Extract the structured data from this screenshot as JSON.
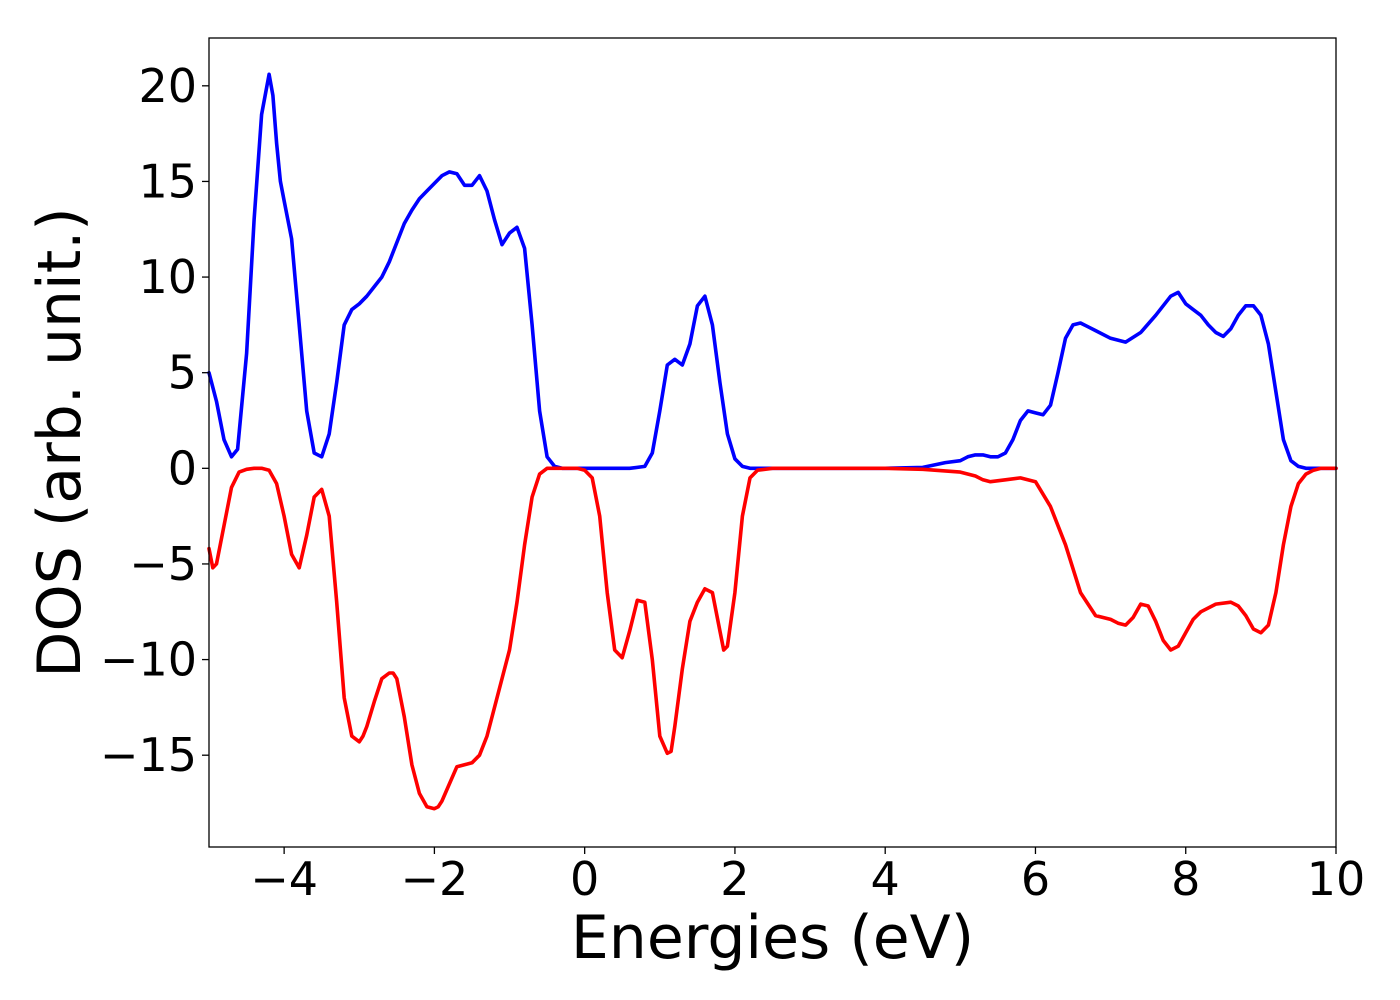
{
  "chart_data": {
    "type": "line",
    "xlabel": "Energies (eV)",
    "ylabel": "DOS (arb. unit.)",
    "xlim": [
      -5,
      10
    ],
    "ylim": [
      -19.8,
      22.5
    ],
    "grid": false,
    "legend": "none",
    "x_ticks": [
      -4,
      -2,
      0,
      2,
      4,
      6,
      8,
      10
    ],
    "x_tick_labels": [
      "−4",
      "−2",
      "0",
      "2",
      "4",
      "6",
      "8",
      "10"
    ],
    "y_ticks": [
      20,
      15,
      10,
      5,
      0,
      -5,
      -10,
      -15
    ],
    "y_tick_labels": [
      "20",
      "15",
      "10",
      "5",
      "0",
      "−5",
      "−10",
      "−15"
    ],
    "series": [
      {
        "color": "#0000ff",
        "x": [
          -5,
          -4.9,
          -4.8,
          -4.7,
          -4.62,
          -4.5,
          -4.4,
          -4.3,
          -4.2,
          -4.15,
          -4.1,
          -4.05,
          -4.0,
          -3.9,
          -3.8,
          -3.7,
          -3.6,
          -3.5,
          -3.4,
          -3.3,
          -3.2,
          -3.1,
          -3.0,
          -2.9,
          -2.8,
          -2.7,
          -2.6,
          -2.5,
          -2.4,
          -2.3,
          -2.2,
          -2.1,
          -2.0,
          -1.9,
          -1.8,
          -1.7,
          -1.6,
          -1.5,
          -1.4,
          -1.3,
          -1.2,
          -1.1,
          -1.0,
          -0.9,
          -0.8,
          -0.7,
          -0.6,
          -0.5,
          -0.4,
          -0.3,
          -0.2,
          -0.1,
          0.0,
          0.2,
          0.4,
          0.6,
          0.8,
          0.9,
          1.0,
          1.1,
          1.2,
          1.3,
          1.4,
          1.5,
          1.6,
          1.7,
          1.8,
          1.9,
          2.0,
          2.1,
          2.2,
          2.3,
          2.5,
          3.0,
          4.0,
          4.5,
          4.8,
          5.0,
          5.1,
          5.2,
          5.3,
          5.4,
          5.5,
          5.6,
          5.7,
          5.8,
          5.9,
          6.0,
          6.1,
          6.2,
          6.3,
          6.4,
          6.5,
          6.6,
          6.7,
          6.8,
          7.0,
          7.2,
          7.4,
          7.6,
          7.8,
          7.9,
          8.0,
          8.1,
          8.2,
          8.3,
          8.4,
          8.5,
          8.6,
          8.7,
          8.8,
          8.9,
          9.0,
          9.1,
          9.2,
          9.3,
          9.4,
          9.5,
          9.6,
          9.8,
          10.0
        ],
        "y": [
          5.0,
          3.5,
          1.5,
          0.6,
          1.0,
          6.0,
          13.0,
          18.5,
          20.6,
          19.5,
          17.0,
          15.0,
          14.0,
          12.0,
          7.5,
          3.0,
          0.8,
          0.6,
          1.8,
          4.5,
          7.5,
          8.3,
          8.6,
          9.0,
          9.5,
          10.0,
          10.8,
          11.8,
          12.8,
          13.5,
          14.1,
          14.5,
          14.9,
          15.3,
          15.5,
          15.4,
          14.8,
          14.8,
          15.3,
          14.5,
          13.0,
          11.7,
          12.3,
          12.6,
          11.5,
          7.5,
          3.0,
          0.6,
          0.1,
          0.0,
          0.0,
          0.0,
          0.0,
          0.0,
          0.0,
          0.0,
          0.1,
          0.8,
          3.0,
          5.4,
          5.7,
          5.4,
          6.5,
          8.5,
          9.0,
          7.5,
          4.5,
          1.8,
          0.5,
          0.1,
          0.0,
          0.0,
          0.0,
          0.0,
          0.0,
          0.05,
          0.3,
          0.4,
          0.6,
          0.7,
          0.7,
          0.6,
          0.6,
          0.8,
          1.5,
          2.5,
          3.0,
          2.9,
          2.8,
          3.3,
          5.0,
          6.8,
          7.5,
          7.6,
          7.4,
          7.2,
          6.8,
          6.6,
          7.1,
          8.0,
          9.0,
          9.2,
          8.6,
          8.3,
          8.0,
          7.5,
          7.1,
          6.9,
          7.3,
          8.0,
          8.5,
          8.5,
          8.0,
          6.5,
          4.0,
          1.5,
          0.4,
          0.1,
          0.0,
          0.0,
          0.0
        ]
      },
      {
        "color": "#ff0000",
        "x": [
          -5,
          -4.95,
          -4.9,
          -4.8,
          -4.7,
          -4.6,
          -4.5,
          -4.4,
          -4.3,
          -4.2,
          -4.1,
          -4.0,
          -3.9,
          -3.8,
          -3.7,
          -3.6,
          -3.5,
          -3.4,
          -3.3,
          -3.2,
          -3.1,
          -3.0,
          -2.95,
          -2.9,
          -2.8,
          -2.7,
          -2.6,
          -2.55,
          -2.5,
          -2.4,
          -2.3,
          -2.2,
          -2.1,
          -2.0,
          -1.95,
          -1.9,
          -1.8,
          -1.7,
          -1.6,
          -1.5,
          -1.4,
          -1.3,
          -1.2,
          -1.1,
          -1.0,
          -0.9,
          -0.8,
          -0.7,
          -0.6,
          -0.5,
          -0.4,
          -0.3,
          -0.2,
          -0.1,
          0.0,
          0.1,
          0.2,
          0.3,
          0.4,
          0.5,
          0.6,
          0.7,
          0.8,
          0.9,
          1.0,
          1.1,
          1.15,
          1.2,
          1.3,
          1.4,
          1.5,
          1.6,
          1.7,
          1.8,
          1.85,
          1.9,
          2.0,
          2.1,
          2.2,
          2.3,
          2.5,
          3.0,
          4.0,
          4.5,
          5.0,
          5.2,
          5.3,
          5.4,
          5.6,
          5.8,
          6.0,
          6.2,
          6.4,
          6.6,
          6.8,
          7.0,
          7.1,
          7.2,
          7.3,
          7.4,
          7.5,
          7.6,
          7.7,
          7.8,
          7.9,
          8.0,
          8.1,
          8.2,
          8.4,
          8.6,
          8.7,
          8.8,
          8.9,
          9.0,
          9.1,
          9.2,
          9.3,
          9.4,
          9.5,
          9.6,
          9.7,
          9.8,
          10.0
        ],
        "y": [
          -4.2,
          -5.2,
          -5.0,
          -3.0,
          -1.0,
          -0.2,
          -0.05,
          0.0,
          0.0,
          -0.1,
          -0.8,
          -2.5,
          -4.5,
          -5.2,
          -3.5,
          -1.5,
          -1.1,
          -2.5,
          -7.0,
          -12.0,
          -14.0,
          -14.3,
          -14.0,
          -13.5,
          -12.2,
          -11.0,
          -10.7,
          -10.7,
          -11.0,
          -13.0,
          -15.5,
          -17.0,
          -17.7,
          -17.8,
          -17.7,
          -17.4,
          -16.5,
          -15.6,
          -15.5,
          -15.4,
          -15.0,
          -14.0,
          -12.5,
          -11.0,
          -9.5,
          -7.0,
          -4.0,
          -1.5,
          -0.3,
          0.0,
          0.0,
          0.0,
          0.0,
          0.0,
          -0.1,
          -0.5,
          -2.5,
          -6.5,
          -9.5,
          -9.9,
          -8.5,
          -6.9,
          -7.0,
          -10.0,
          -14.0,
          -14.9,
          -14.8,
          -13.5,
          -10.5,
          -8.0,
          -7.0,
          -6.3,
          -6.5,
          -8.5,
          -9.5,
          -9.3,
          -6.5,
          -2.5,
          -0.5,
          -0.1,
          0.0,
          0.0,
          0.0,
          -0.05,
          -0.2,
          -0.4,
          -0.6,
          -0.7,
          -0.6,
          -0.5,
          -0.7,
          -2.0,
          -4.0,
          -6.5,
          -7.7,
          -7.9,
          -8.1,
          -8.2,
          -7.8,
          -7.1,
          -7.2,
          -8.0,
          -9.0,
          -9.5,
          -9.3,
          -8.6,
          -7.9,
          -7.5,
          -7.1,
          -7.0,
          -7.2,
          -7.7,
          -8.4,
          -8.6,
          -8.2,
          -6.5,
          -4.0,
          -2.0,
          -0.8,
          -0.3,
          -0.1,
          0.0,
          0.0
        ]
      }
    ]
  }
}
